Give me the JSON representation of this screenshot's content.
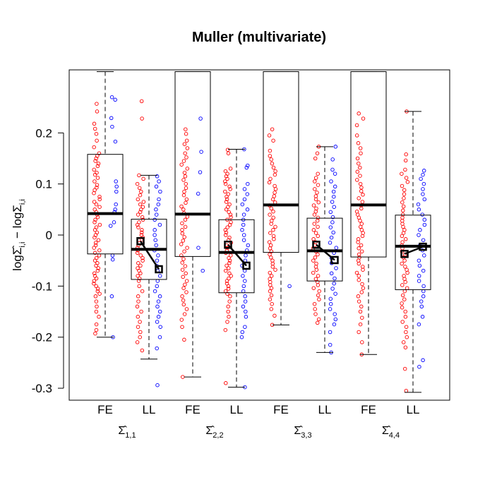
{
  "chart_data": {
    "type": "boxplot",
    "title": "Muller (multivariate)",
    "ylabel": "logΣ̂i,i − logΣi,i",
    "ylabel_parts": {
      "pre1": "log",
      "sym1": "Σ̂",
      "sub1": "i,i",
      "minus": " − ",
      "pre2": "log",
      "sym2": "Σ",
      "sub2": "i,i"
    },
    "ylim": [
      -0.325,
      0.325
    ],
    "yticks": [
      0.2,
      0.1,
      0,
      -0.1,
      -0.2,
      -0.3
    ],
    "ytick_labels": [
      "0.2",
      "0.1",
      "0",
      "-0.1",
      "-0.2",
      "-0.3"
    ],
    "xtick_labels": [
      "FE",
      "LL",
      "FE",
      "LL",
      "FE",
      "LL",
      "FE",
      "LL"
    ],
    "groups": [
      {
        "sym": "Σ̂",
        "sub": "1,1"
      },
      {
        "sym": "Σ̂",
        "sub": "2,2"
      },
      {
        "sym": "Σ̂",
        "sub": "3,3"
      },
      {
        "sym": "Σ̂",
        "sub": "4,4"
      }
    ],
    "colors": {
      "red": "#ff0000",
      "blue": "#0000ff",
      "line": "#000000"
    },
    "boxes": [
      {
        "label": "FE",
        "min": -0.2,
        "q1": -0.037,
        "median": 0.042,
        "q3": 0.158,
        "max": 0.32
      },
      {
        "label": "LL",
        "min": -0.243,
        "q1": -0.087,
        "median": -0.028,
        "q3": 0.031,
        "max": 0.117
      },
      {
        "label": "FE",
        "min": -0.278,
        "q1": -0.042,
        "median": 0.041,
        "q3": 0.32,
        "max": 0.32
      },
      {
        "label": "LL",
        "min": -0.298,
        "q1": -0.113,
        "median": -0.034,
        "q3": 0.03,
        "max": 0.168
      },
      {
        "label": "FE",
        "min": -0.176,
        "q1": -0.034,
        "median": 0.059,
        "q3": 0.32,
        "max": 0.32
      },
      {
        "label": "LL",
        "min": -0.23,
        "q1": -0.09,
        "median": -0.031,
        "q3": 0.033,
        "max": 0.173
      },
      {
        "label": "FE",
        "min": -0.234,
        "q1": -0.043,
        "median": 0.059,
        "q3": 0.32,
        "max": 0.32
      },
      {
        "label": "LL",
        "min": -0.308,
        "q1": -0.107,
        "median": -0.022,
        "q3": 0.039,
        "max": 0.242
      }
    ],
    "mean_markers": [
      {
        "group": 1,
        "red_mean": -0.012,
        "blue_mean": -0.067
      },
      {
        "group": 2,
        "red_mean": -0.019,
        "blue_mean": -0.06
      },
      {
        "group": 3,
        "red_mean": -0.019,
        "blue_mean": -0.049
      },
      {
        "group": 4,
        "red_mean": -0.037,
        "blue_mean": -0.023
      }
    ],
    "points": [
      {
        "box": 0,
        "color": "red",
        "values": [
          0.257,
          0.242,
          0.218,
          0.208,
          0.198,
          0.185,
          0.172,
          0.16,
          0.155,
          0.15,
          0.145,
          0.14,
          0.135,
          0.128,
          0.122,
          0.118,
          0.112,
          0.105,
          0.098,
          0.093,
          0.088,
          0.082,
          0.075,
          0.07,
          0.065,
          0.06,
          0.055,
          0.05,
          0.045,
          0.04,
          0.035,
          0.03,
          0.025,
          0.02,
          0.015,
          0.01,
          0.005,
          0.0,
          -0.005,
          -0.01,
          -0.015,
          -0.02,
          -0.025,
          -0.03,
          -0.035,
          -0.04,
          -0.045,
          -0.05,
          -0.055,
          -0.06,
          -0.065,
          -0.07,
          -0.075,
          -0.08,
          -0.085,
          -0.09,
          -0.095,
          -0.1,
          -0.105,
          -0.11,
          -0.115,
          -0.12,
          -0.13,
          -0.14,
          -0.15,
          -0.16,
          -0.175,
          -0.186,
          -0.193
        ]
      },
      {
        "box": 0,
        "color": "blue",
        "values": [
          0.27,
          0.265,
          0.229,
          0.212,
          0.183,
          0.105,
          0.095,
          0.085,
          0.06,
          0.05,
          0.045,
          0.025,
          0.018,
          -0.04,
          -0.048,
          -0.12,
          -0.2
        ]
      },
      {
        "box": 1,
        "color": "red",
        "values": [
          0.262,
          0.228,
          0.117,
          0.11,
          0.1,
          0.092,
          0.085,
          0.078,
          0.07,
          0.065,
          0.06,
          0.055,
          0.05,
          0.045,
          0.04,
          0.035,
          0.03,
          0.025,
          0.02,
          0.015,
          0.01,
          0.005,
          0.0,
          -0.005,
          -0.01,
          -0.015,
          -0.02,
          -0.025,
          -0.03,
          -0.035,
          -0.04,
          -0.045,
          -0.05,
          -0.055,
          -0.06,
          -0.065,
          -0.07,
          -0.075,
          -0.08,
          -0.085,
          -0.09,
          -0.1,
          -0.11,
          -0.12,
          -0.13,
          -0.14,
          -0.15,
          -0.16,
          -0.17,
          -0.18,
          -0.19,
          -0.2,
          -0.21,
          -0.226
        ]
      },
      {
        "box": 1,
        "color": "blue",
        "values": [
          0.115,
          0.105,
          0.095,
          0.085,
          0.07,
          0.06,
          0.05,
          0.04,
          0.03,
          0.02,
          0.01,
          0.0,
          -0.01,
          -0.02,
          -0.03,
          -0.04,
          -0.05,
          -0.06,
          -0.07,
          -0.08,
          -0.09,
          -0.1,
          -0.11,
          -0.12,
          -0.13,
          -0.14,
          -0.15,
          -0.16,
          -0.17,
          -0.18,
          -0.2,
          -0.222,
          -0.294
        ]
      },
      {
        "box": 2,
        "color": "red",
        "values": [
          0.207,
          0.198,
          0.185,
          0.178,
          0.17,
          0.16,
          0.152,
          0.145,
          0.138,
          0.13,
          0.122,
          0.115,
          0.108,
          0.1,
          0.092,
          0.085,
          0.078,
          0.07,
          0.063,
          0.056,
          0.05,
          0.043,
          0.036,
          0.03,
          0.023,
          0.016,
          0.01,
          0.003,
          -0.004,
          -0.011,
          -0.018,
          -0.025,
          -0.032,
          -0.04,
          -0.047,
          -0.054,
          -0.061,
          -0.068,
          -0.075,
          -0.082,
          -0.09,
          -0.097,
          -0.104,
          -0.112,
          -0.12,
          -0.128,
          -0.136,
          -0.145,
          -0.155,
          -0.166,
          -0.18,
          -0.205,
          -0.278
        ]
      },
      {
        "box": 2,
        "color": "blue",
        "values": [
          0.228,
          0.163,
          0.123,
          0.081,
          -0.025,
          -0.07
        ]
      },
      {
        "box": 3,
        "color": "red",
        "values": [
          0.167,
          0.16,
          0.13,
          0.125,
          0.12,
          0.115,
          0.11,
          0.105,
          0.1,
          0.095,
          0.09,
          0.085,
          0.08,
          0.075,
          0.07,
          0.065,
          0.06,
          0.055,
          0.05,
          0.045,
          0.04,
          0.035,
          0.03,
          0.025,
          0.02,
          0.015,
          0.01,
          0.005,
          0.0,
          -0.005,
          -0.01,
          -0.015,
          -0.02,
          -0.025,
          -0.03,
          -0.035,
          -0.04,
          -0.045,
          -0.05,
          -0.055,
          -0.06,
          -0.065,
          -0.07,
          -0.075,
          -0.08,
          -0.085,
          -0.09,
          -0.095,
          -0.1,
          -0.105,
          -0.11,
          -0.115,
          -0.12,
          -0.13,
          -0.14,
          -0.15,
          -0.16,
          -0.17,
          -0.186,
          -0.29
        ]
      },
      {
        "box": 3,
        "color": "blue",
        "values": [
          0.168,
          0.136,
          0.132,
          0.1,
          0.09,
          0.08,
          0.07,
          0.06,
          0.05,
          0.04,
          0.03,
          0.02,
          0.01,
          0.0,
          -0.01,
          -0.02,
          -0.03,
          -0.04,
          -0.05,
          -0.06,
          -0.07,
          -0.08,
          -0.09,
          -0.1,
          -0.11,
          -0.12,
          -0.13,
          -0.14,
          -0.15,
          -0.16,
          -0.18,
          -0.19,
          -0.2,
          -0.298
        ]
      },
      {
        "box": 4,
        "color": "red",
        "values": [
          0.207,
          0.195,
          0.185,
          0.165,
          0.155,
          0.148,
          0.14,
          0.132,
          0.125,
          0.118,
          0.11,
          0.103,
          0.096,
          0.09,
          0.083,
          0.076,
          0.07,
          0.064,
          0.058,
          0.052,
          0.046,
          0.04,
          0.034,
          0.028,
          0.022,
          0.016,
          0.01,
          0.004,
          -0.002,
          -0.008,
          -0.014,
          -0.02,
          -0.026,
          -0.032,
          -0.038,
          -0.044,
          -0.05,
          -0.056,
          -0.062,
          -0.068,
          -0.074,
          -0.08,
          -0.086,
          -0.092,
          -0.098,
          -0.104,
          -0.11,
          -0.118,
          -0.126,
          -0.135,
          -0.145,
          -0.158,
          -0.176
        ]
      },
      {
        "box": 4,
        "color": "blue",
        "values": [
          -0.1
        ]
      },
      {
        "box": 5,
        "color": "red",
        "values": [
          0.173,
          0.16,
          0.15,
          0.12,
          0.112,
          0.105,
          0.098,
          0.09,
          0.083,
          0.076,
          0.07,
          0.064,
          0.058,
          0.052,
          0.046,
          0.04,
          0.034,
          0.028,
          0.022,
          0.016,
          0.01,
          0.004,
          -0.002,
          -0.008,
          -0.014,
          -0.02,
          -0.026,
          -0.032,
          -0.038,
          -0.044,
          -0.05,
          -0.056,
          -0.062,
          -0.068,
          -0.074,
          -0.08,
          -0.086,
          -0.092,
          -0.098,
          -0.104,
          -0.11,
          -0.118,
          -0.126,
          -0.135,
          -0.145,
          -0.155,
          -0.165,
          -0.172
        ]
      },
      {
        "box": 5,
        "color": "blue",
        "values": [
          0.173,
          0.148,
          0.128,
          0.12,
          0.105,
          0.095,
          0.085,
          0.075,
          0.065,
          0.055,
          0.045,
          0.035,
          0.025,
          0.015,
          0.005,
          -0.005,
          -0.015,
          -0.025,
          -0.035,
          -0.045,
          -0.055,
          -0.065,
          -0.075,
          -0.085,
          -0.095,
          -0.105,
          -0.115,
          -0.125,
          -0.135,
          -0.145,
          -0.155,
          -0.165,
          -0.175,
          -0.19,
          -0.215,
          -0.23
        ]
      },
      {
        "box": 6,
        "color": "red",
        "values": [
          0.238,
          0.228,
          0.215,
          0.195,
          0.18,
          0.17,
          0.16,
          0.15,
          0.14,
          0.132,
          0.124,
          0.116,
          0.108,
          0.1,
          0.093,
          0.086,
          0.079,
          0.072,
          0.065,
          0.058,
          0.052,
          0.046,
          0.04,
          0.034,
          0.028,
          0.022,
          0.016,
          0.01,
          0.004,
          -0.002,
          -0.008,
          -0.014,
          -0.02,
          -0.026,
          -0.032,
          -0.038,
          -0.044,
          -0.05,
          -0.056,
          -0.062,
          -0.068,
          -0.074,
          -0.08,
          -0.088,
          -0.096,
          -0.104,
          -0.112,
          -0.12,
          -0.13,
          -0.14,
          -0.15,
          -0.162,
          -0.175,
          -0.19,
          -0.21,
          -0.234
        ]
      },
      {
        "box": 7,
        "color": "red",
        "values": [
          0.242,
          0.158,
          0.146,
          0.128,
          0.12,
          0.112,
          0.104,
          0.096,
          0.088,
          0.08,
          0.072,
          0.064,
          0.056,
          0.048,
          0.04,
          0.034,
          0.028,
          0.022,
          0.016,
          0.01,
          0.004,
          -0.002,
          -0.008,
          -0.014,
          -0.02,
          -0.026,
          -0.032,
          -0.038,
          -0.044,
          -0.05,
          -0.056,
          -0.062,
          -0.068,
          -0.074,
          -0.08,
          -0.086,
          -0.092,
          -0.098,
          -0.104,
          -0.11,
          -0.118,
          -0.126,
          -0.134,
          -0.142,
          -0.15,
          -0.16,
          -0.17,
          -0.18,
          -0.19,
          -0.2,
          -0.21,
          -0.22,
          -0.262,
          -0.305
        ]
      },
      {
        "box": 7,
        "color": "blue",
        "values": [
          0.126,
          0.118,
          0.11,
          0.1,
          0.09,
          0.08,
          0.07,
          0.06,
          0.05,
          0.04,
          0.03,
          0.02,
          0.01,
          0.0,
          -0.01,
          -0.02,
          -0.03,
          -0.04,
          -0.05,
          -0.06,
          -0.07,
          -0.08,
          -0.09,
          -0.1,
          -0.11,
          -0.12,
          -0.13,
          -0.14,
          -0.16,
          -0.175,
          -0.245,
          -0.258
        ]
      }
    ]
  }
}
